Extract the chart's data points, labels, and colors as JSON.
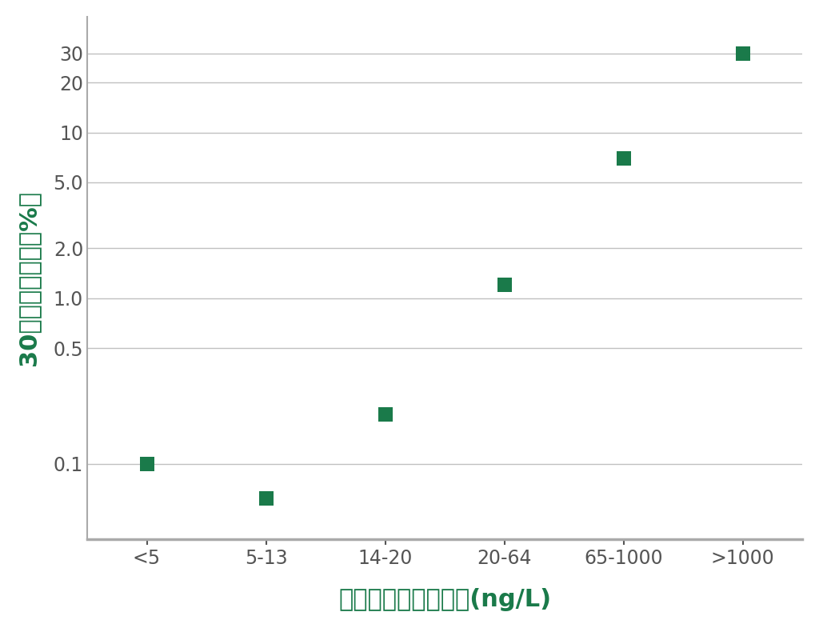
{
  "x_labels": [
    "<5",
    "5-13",
    "14-20",
    "20-64",
    "65-1000",
    ">1000"
  ],
  "y_values": [
    0.1,
    0.062,
    0.2,
    1.2,
    7.0,
    30.0
  ],
  "marker_color": "#1a7a4a",
  "marker_size": 13,
  "ylabel": "30日間死亡確率（%）",
  "xlabel": "トロポニンピーク値(ng/L)",
  "ylabel_color": "#1a7a4a",
  "xlabel_color": "#1a7a4a",
  "background_color": "#ffffff",
  "grid_color": "#c0c0c0",
  "yticks": [
    0.1,
    0.5,
    1.0,
    2.0,
    5.0,
    10.0,
    20.0,
    30.0
  ],
  "ytick_labels": [
    "0.1",
    "0.5",
    "1.0",
    "2.0",
    "5.0",
    "10",
    "20",
    "30"
  ],
  "ylim_min": 0.035,
  "ylim_max": 50.0,
  "spine_color": "#aaaaaa",
  "tick_label_fontsize": 17,
  "axis_label_fontsize": 22
}
